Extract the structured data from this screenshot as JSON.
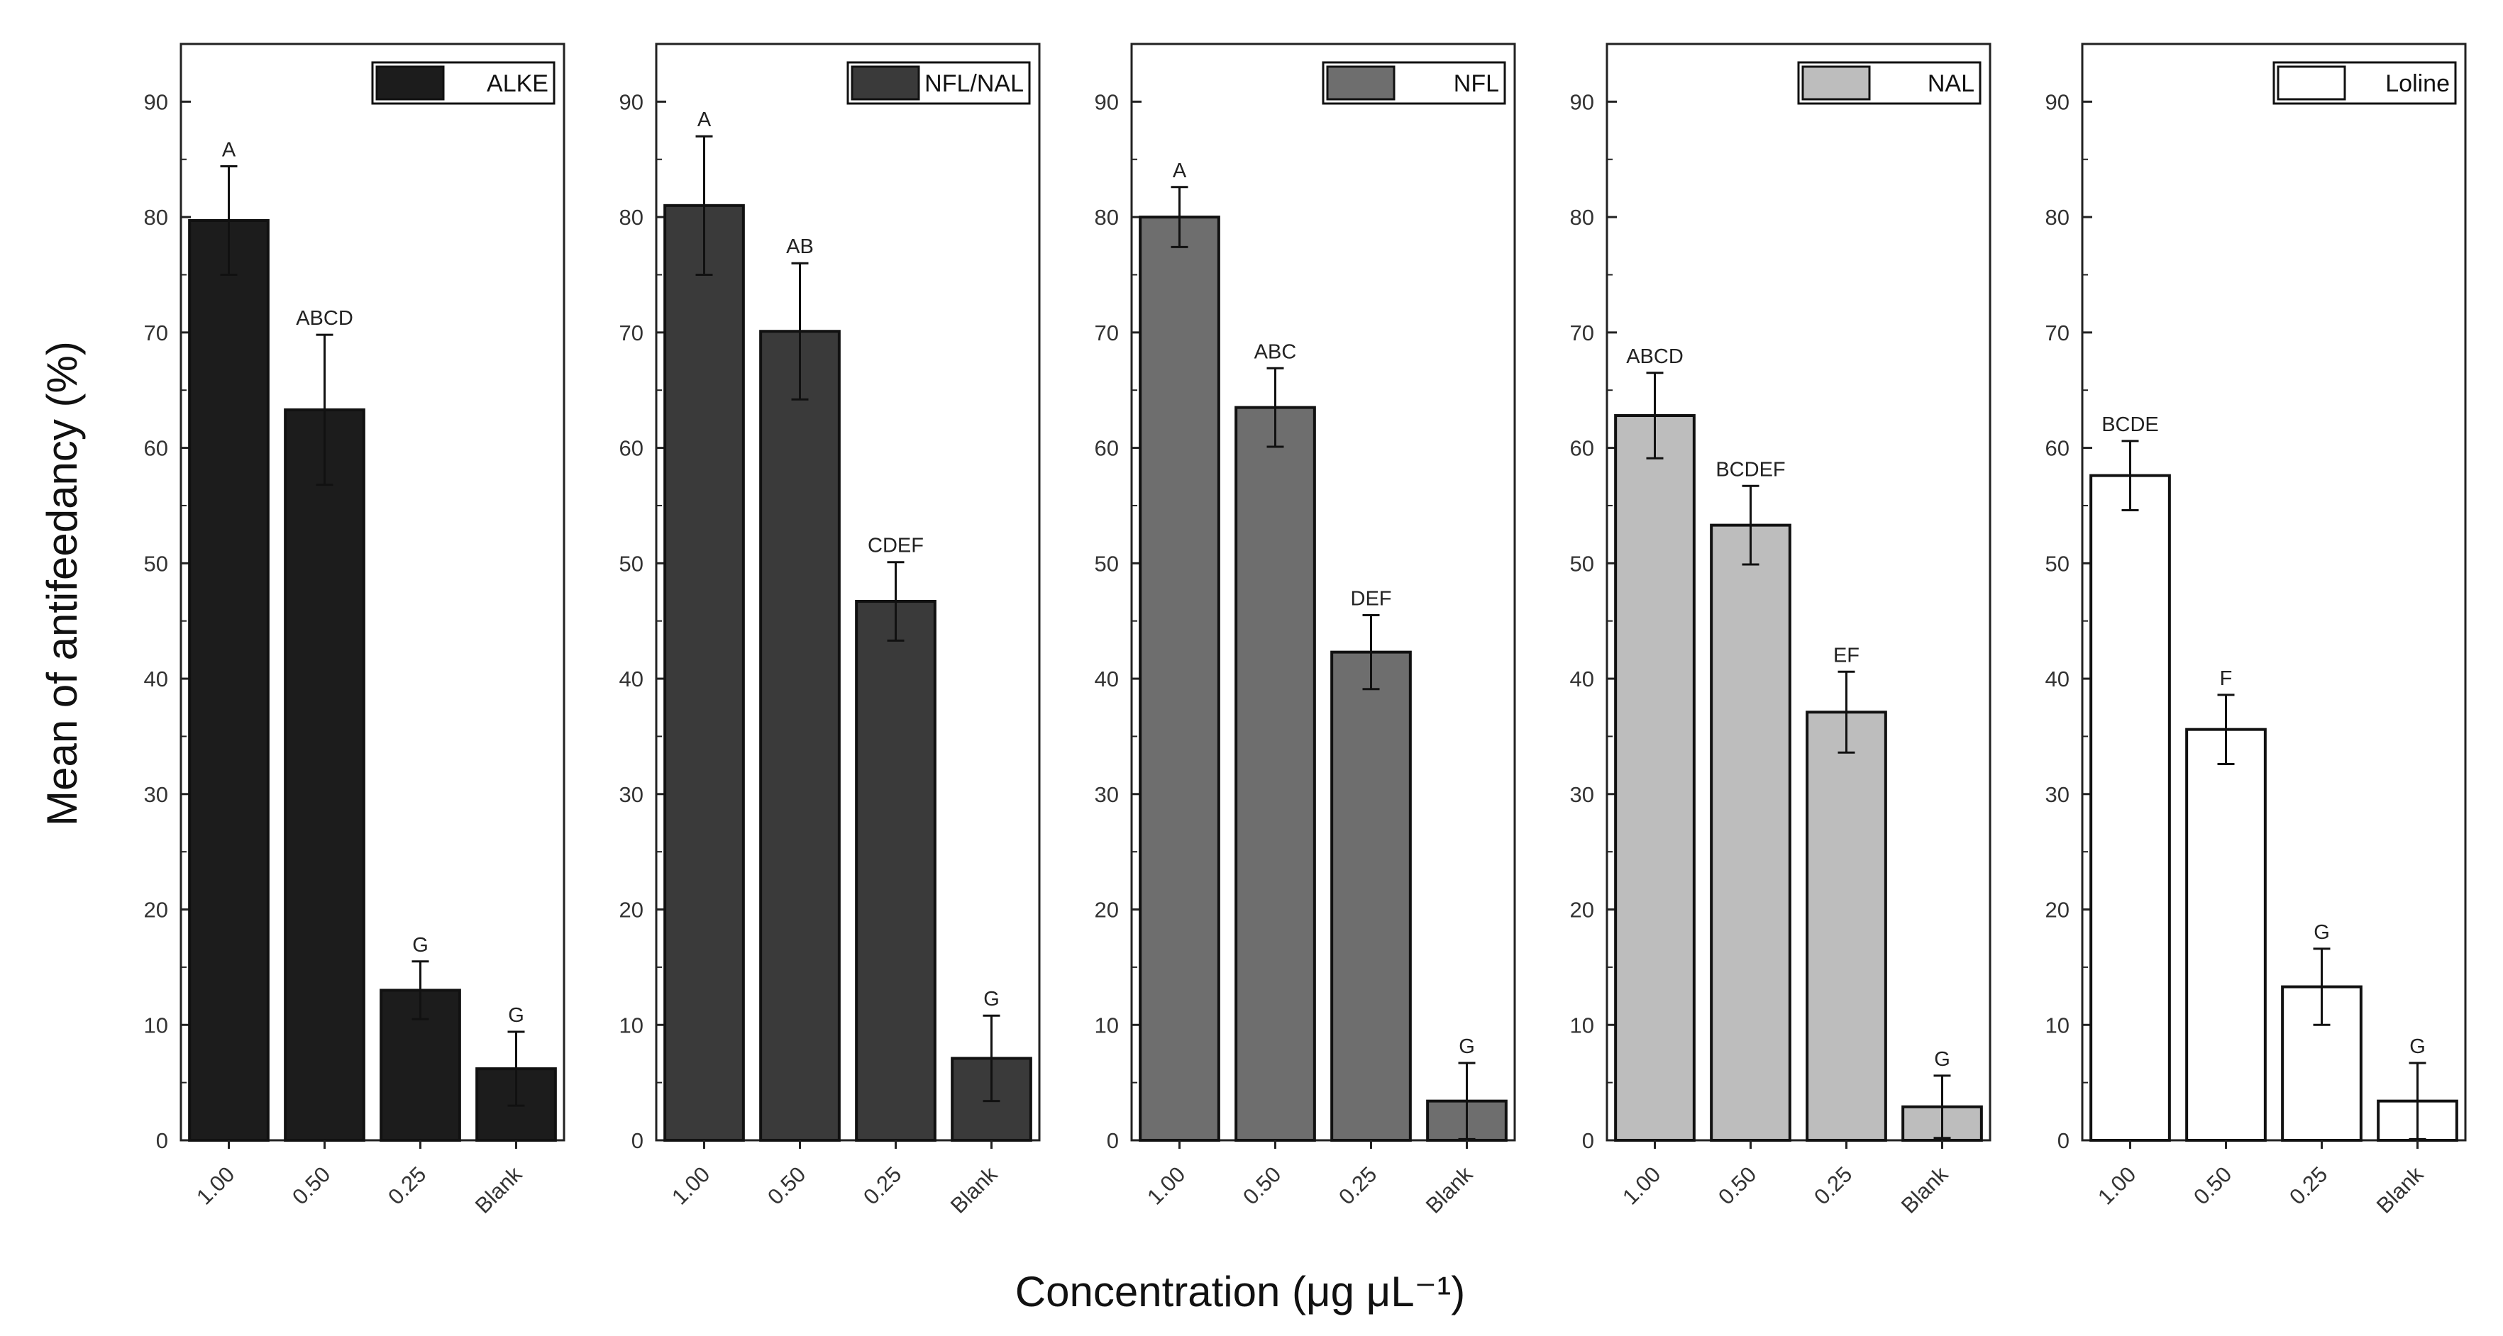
{
  "figure": {
    "ylabel": "Mean of antifeedancy (%)",
    "xlabel": "Concentration (μg μL⁻¹)"
  },
  "chart_data": [
    {
      "type": "bar",
      "legend": "ALKE",
      "color": "#1c1c1c",
      "categories": [
        "1.00",
        "0.50",
        "0.25",
        "Blank"
      ],
      "values": [
        79.7,
        63.3,
        13.0,
        6.2
      ],
      "errors": [
        4.7,
        6.5,
        2.5,
        3.2
      ],
      "labels": [
        "A",
        "ABCD",
        "G",
        "G"
      ],
      "ylim": [
        0,
        95
      ],
      "yticks": [
        0,
        10,
        20,
        30,
        40,
        50,
        60,
        70,
        80,
        90
      ],
      "grid": false,
      "legend_position": "top-right"
    },
    {
      "type": "bar",
      "legend": "NFL/NAL",
      "color": "#3a3a3a",
      "categories": [
        "1.00",
        "0.50",
        "0.25",
        "Blank"
      ],
      "values": [
        81.0,
        70.1,
        46.7,
        7.1
      ],
      "errors": [
        6.0,
        5.9,
        3.4,
        3.7
      ],
      "labels": [
        "A",
        "AB",
        "CDEF",
        "G"
      ],
      "ylim": [
        0,
        95
      ],
      "yticks": [
        0,
        10,
        20,
        30,
        40,
        50,
        60,
        70,
        80,
        90
      ],
      "grid": false,
      "legend_position": "top-right"
    },
    {
      "type": "bar",
      "legend": "NFL",
      "color": "#6e6e6e",
      "categories": [
        "1.00",
        "0.50",
        "0.25",
        "Blank"
      ],
      "values": [
        80.0,
        63.5,
        42.3,
        3.4
      ],
      "errors": [
        2.6,
        3.4,
        3.2,
        3.3
      ],
      "labels": [
        "A",
        "ABC",
        "DEF",
        "G"
      ],
      "ylim": [
        0,
        95
      ],
      "yticks": [
        0,
        10,
        20,
        30,
        40,
        50,
        60,
        70,
        80,
        90
      ],
      "grid": false,
      "legend_position": "top-right"
    },
    {
      "type": "bar",
      "legend": "NAL",
      "color": "#bdbdbd",
      "categories": [
        "1.00",
        "0.50",
        "0.25",
        "Blank"
      ],
      "values": [
        62.8,
        53.3,
        37.1,
        2.9
      ],
      "errors": [
        3.7,
        3.4,
        3.5,
        2.7
      ],
      "labels": [
        "ABCD",
        "BCDEF",
        "EF",
        "G"
      ],
      "ylim": [
        0,
        95
      ],
      "yticks": [
        0,
        10,
        20,
        30,
        40,
        50,
        60,
        70,
        80,
        90
      ],
      "grid": false,
      "legend_position": "top-right"
    },
    {
      "type": "bar",
      "legend": "Loline",
      "color": "#ffffff",
      "categories": [
        "1.00",
        "0.50",
        "0.25",
        "Blank"
      ],
      "values": [
        57.6,
        35.6,
        13.3,
        3.4
      ],
      "errors": [
        3.0,
        3.0,
        3.3,
        3.3
      ],
      "labels": [
        "BCDE",
        "F",
        "G",
        "G"
      ],
      "ylim": [
        0,
        95
      ],
      "yticks": [
        0,
        10,
        20,
        30,
        40,
        50,
        60,
        70,
        80,
        90
      ],
      "grid": false,
      "legend_position": "top-right"
    }
  ]
}
